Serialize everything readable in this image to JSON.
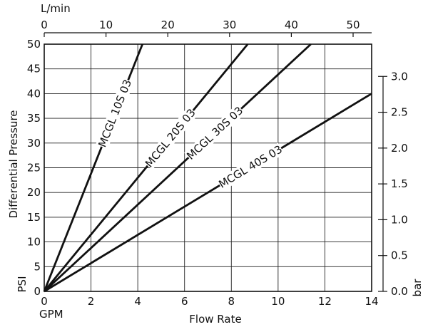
{
  "chart_data": {
    "type": "line",
    "xlabel": "Flow Rate",
    "x_unit": "GPM",
    "ylabel": "Differential Pressure",
    "y_unit": "PSI",
    "xlim": [
      0,
      14
    ],
    "ylim": [
      0,
      50
    ],
    "x_ticks": [
      0,
      2,
      4,
      6,
      8,
      10,
      12,
      14
    ],
    "y_ticks": [
      0,
      5,
      10,
      15,
      20,
      25,
      30,
      35,
      40,
      45,
      50
    ],
    "secondary_x": {
      "unit": "L/min",
      "lim": [
        0,
        53
      ],
      "ticks": [
        0,
        10,
        20,
        30,
        40,
        50
      ]
    },
    "secondary_y": {
      "unit": "bar",
      "lim": [
        0,
        3.45
      ],
      "ticks": [
        0.0,
        0.5,
        1.0,
        1.5,
        2.0,
        2.5,
        3.0
      ],
      "tick_labels": [
        "0.0",
        "0.5",
        "1.0",
        "1.5",
        "2.0",
        "2.5",
        "3.0"
      ]
    },
    "grid": true,
    "series": [
      {
        "name": "MCGL 10S 03",
        "x": [
          0,
          4.2
        ],
        "y": [
          0,
          50
        ]
      },
      {
        "name": "MCGL 20S 03",
        "x": [
          0,
          8.7
        ],
        "y": [
          0,
          50
        ]
      },
      {
        "name": "MCGL 30S 03",
        "x": [
          0,
          11.4
        ],
        "y": [
          0,
          50
        ]
      },
      {
        "name": "MCGL 40S 03",
        "x": [
          0,
          14
        ],
        "y": [
          0,
          40
        ]
      }
    ]
  }
}
